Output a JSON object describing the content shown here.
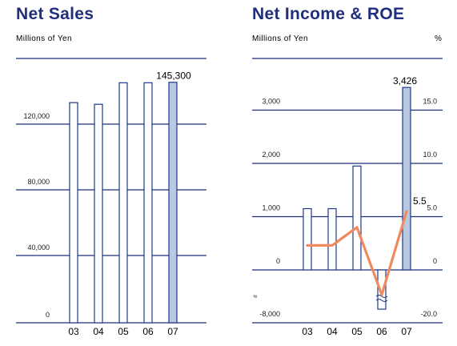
{
  "chart_data": [
    {
      "type": "bar",
      "title": "Net Sales",
      "unit_label": "Millions of Yen",
      "categories": [
        "03",
        "04",
        "05",
        "06",
        "07"
      ],
      "values": [
        133000,
        132000,
        145000,
        145000,
        145300
      ],
      "highlight_index": 4,
      "data_labels": [
        {
          "index": 4,
          "text": "145,300"
        }
      ],
      "y_ticks": [
        {
          "value": 0,
          "label": "0"
        },
        {
          "value": 40000,
          "label": "40,000"
        },
        {
          "value": 80000,
          "label": "80,000"
        },
        {
          "value": 120000,
          "label": "120,000"
        }
      ],
      "ylim": [
        0,
        160000
      ],
      "colors": {
        "bar_fill": "#ffffff",
        "bar_highlight": "#b8c9e1",
        "bar_stroke": "#1f3a8a",
        "grid": "#1f2f7c"
      }
    },
    {
      "type": "bar+line",
      "title": "Net Income & ROE",
      "unit_label_left": "Millions of Yen",
      "unit_label_right": "%",
      "categories": [
        "03",
        "04",
        "05",
        "06",
        "07"
      ],
      "series": [
        {
          "values": [
            1150,
            1150,
            1950,
            -6800,
            3426
          ],
          "kind": "bar"
        },
        {
          "values": [
            2.3,
            2.3,
            4.0,
            -7.5,
            5.5
          ],
          "kind": "line",
          "axis": "right"
        }
      ],
      "highlight_index": 4,
      "data_labels": [
        {
          "series": 0,
          "index": 4,
          "text": "3,426"
        },
        {
          "series": 1,
          "index": 4,
          "text": "5.5"
        }
      ],
      "y_ticks_left": [
        {
          "value": -8000,
          "label": "-8,000"
        },
        {
          "value": 0,
          "label": "0"
        },
        {
          "value": 1000,
          "label": "1,000"
        },
        {
          "value": 2000,
          "label": "2,000"
        },
        {
          "value": 3000,
          "label": "3,000"
        }
      ],
      "y_ticks_right": [
        {
          "value": -20,
          "label": "-20.0"
        },
        {
          "value": 0,
          "label": "0"
        },
        {
          "value": 5,
          "label": "5.0"
        },
        {
          "value": 10,
          "label": "10.0"
        },
        {
          "value": 15,
          "label": "15.0"
        }
      ],
      "axis_break": true,
      "colors": {
        "bar_fill": "#ffffff",
        "bar_highlight": "#b8c9e1",
        "bar_stroke": "#1f3a8a",
        "grid": "#1f2f7c",
        "line": "#f08a5d"
      }
    }
  ]
}
